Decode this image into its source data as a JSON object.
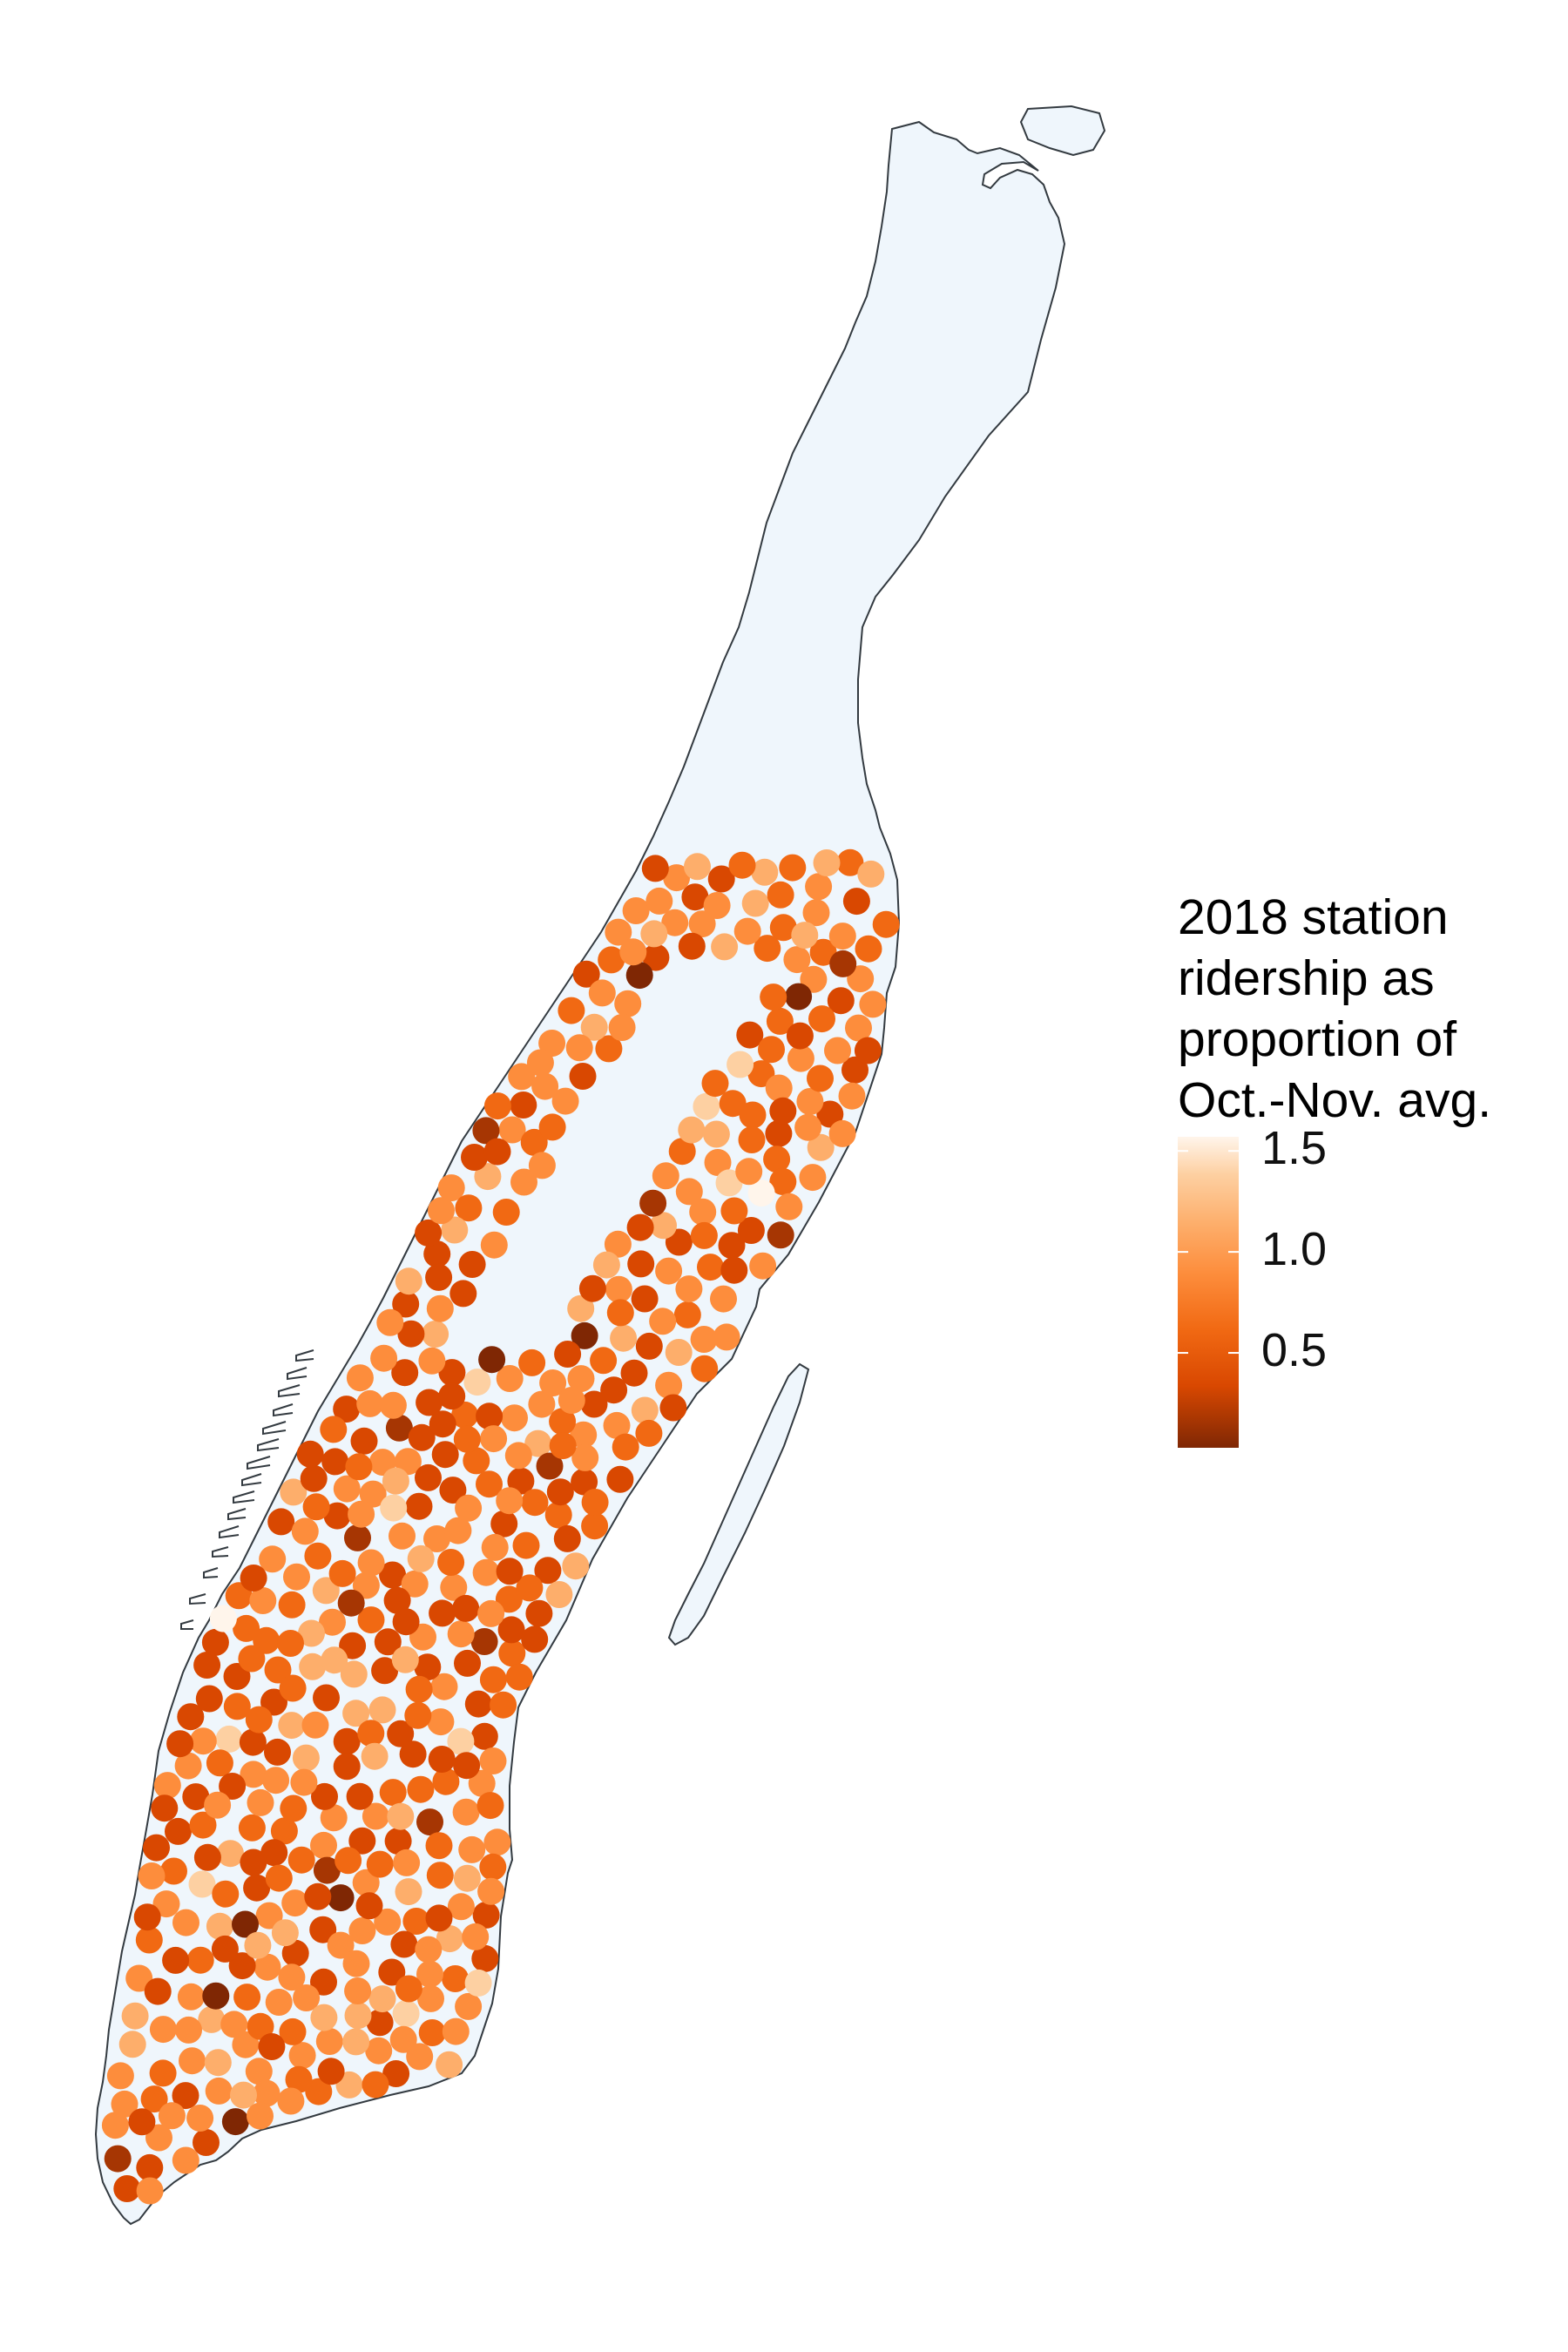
{
  "legend": {
    "title_lines": [
      "2018 station",
      "ridership as",
      "proportion of",
      "Oct.-Nov. avg."
    ],
    "ticks": [
      {
        "label": "1.5",
        "value": 1.5
      },
      {
        "label": "1.0",
        "value": 1.0
      },
      {
        "label": "0.5",
        "value": 0.5
      }
    ],
    "range": [
      0.03,
      1.57
    ],
    "color_stops": [
      "#7f2704",
      "#d94801",
      "#f16913",
      "#fd8d3c",
      "#fdae6b",
      "#fdd0a2",
      "#fff5eb"
    ]
  },
  "colors": {
    "land": "#eff6fc",
    "outline": "#333a40",
    "point_palette": [
      "#7f2704",
      "#a63603",
      "#d94801",
      "#f16913",
      "#fd8d3c",
      "#fdae6b",
      "#fdd0a2",
      "#fff5eb"
    ]
  },
  "stations": {
    "count": 500,
    "ratio_distribution": "mostly 0.5–1.2, a few outliers near 0.1 and 1.5"
  }
}
